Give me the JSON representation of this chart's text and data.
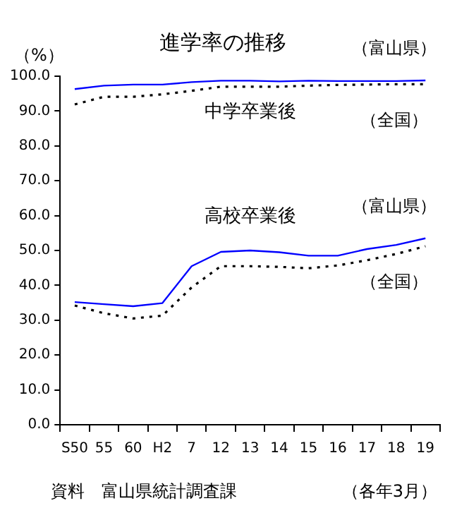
{
  "chart_data": {
    "type": "line",
    "title": "進学率の推移",
    "ylabel": "（%）",
    "categories": [
      "S50",
      "55",
      "60",
      "H2",
      "7",
      "12",
      "13",
      "14",
      "15",
      "16",
      "17",
      "18",
      "19"
    ],
    "series": [
      {
        "name": "（富山県）",
        "color": "#0000ff",
        "line_style": "solid",
        "values": [
          96.3,
          97.3,
          97.6,
          97.6,
          98.3,
          98.7,
          98.7,
          98.5,
          98.7,
          98.6,
          98.6,
          98.6,
          98.8
        ]
      },
      {
        "name": "（全国）",
        "color": "#000000",
        "line_style": "dotted",
        "values": [
          91.9,
          94.1,
          94.1,
          94.8,
          95.8,
          97.0,
          97.0,
          97.0,
          97.3,
          97.5,
          97.6,
          97.7,
          97.7
        ]
      },
      {
        "name": "（富山県）",
        "color": "#0000ff",
        "line_style": "solid",
        "values": [
          35.2,
          34.6,
          34.0,
          34.9,
          45.5,
          49.6,
          50.0,
          49.5,
          48.5,
          48.5,
          50.4,
          51.6,
          53.5
        ]
      },
      {
        "name": "（全国）",
        "color": "#000000",
        "line_style": "dotted",
        "values": [
          34.2,
          32.0,
          30.5,
          31.3,
          39.4,
          45.5,
          45.5,
          45.3,
          44.9,
          45.7,
          47.2,
          49.0,
          51.2
        ]
      }
    ],
    "ylim": [
      0,
      100
    ],
    "yticks": [
      {
        "value": 0,
        "label": "0.0"
      },
      {
        "value": 10,
        "label": "10.0"
      },
      {
        "value": 20,
        "label": "20.0"
      },
      {
        "value": 30,
        "label": "30.0"
      },
      {
        "value": 40,
        "label": "40.0"
      },
      {
        "value": 50,
        "label": "50.0"
      },
      {
        "value": 60,
        "label": "60.0"
      },
      {
        "value": 70,
        "label": "70.0"
      },
      {
        "value": 80,
        "label": "80.0"
      },
      {
        "value": 90,
        "label": "90.0"
      },
      {
        "value": 100,
        "label": "100.0"
      }
    ],
    "annotations": [
      "中学卒業後",
      "高校卒業後",
      "資料　富山県統計調査課",
      "（各年3月）"
    ],
    "grid": false,
    "legend": false,
    "marker": "none"
  }
}
